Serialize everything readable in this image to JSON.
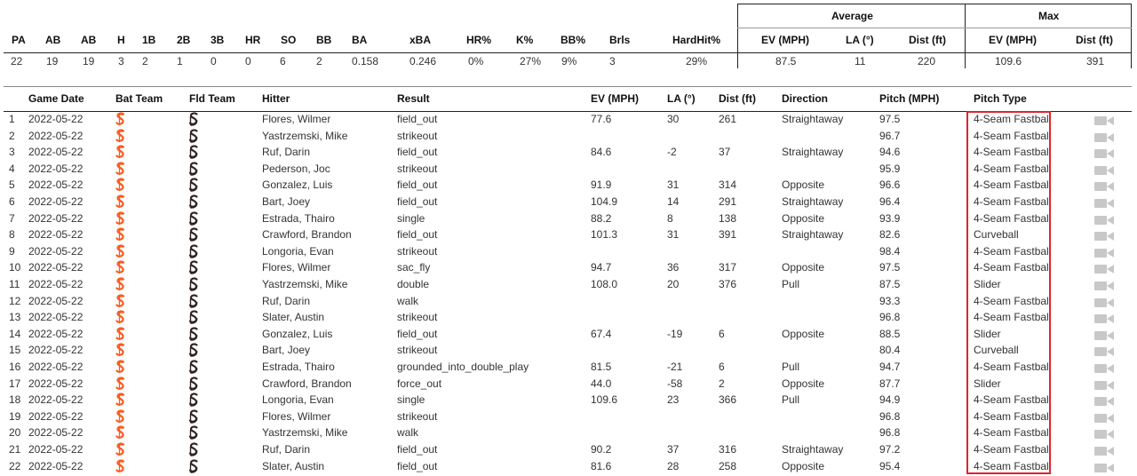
{
  "summary": {
    "group_headers": {
      "average": "Average",
      "max": "Max"
    },
    "headers": [
      "PA",
      "AB",
      "AB",
      "H",
      "1B",
      "2B",
      "3B",
      "HR",
      "SO",
      "BB",
      "BA",
      "xBA",
      "HR%",
      "K%",
      "BB%",
      "Brls",
      "HardHit%",
      "EV (MPH)",
      "LA (°)",
      "Dist (ft)",
      "EV (MPH)",
      "Dist (ft)"
    ],
    "values": [
      "22",
      "19",
      "19",
      "3",
      "2",
      "1",
      "0",
      "0",
      "6",
      "2",
      "0.158",
      "0.246",
      "0%",
      "27%",
      "9%",
      "3",
      "29%",
      "87.5",
      "11",
      "220",
      "109.6",
      "391"
    ]
  },
  "table": {
    "columns": [
      "Game Date",
      "Bat Team",
      "Fld Team",
      "Hitter",
      "Result",
      "EV (MPH)",
      "LA (°)",
      "Dist (ft)",
      "Direction",
      "Pitch (MPH)",
      "Pitch Type"
    ],
    "bat_team_icon": "giants-logo-icon",
    "fld_team_icon": "padres-logo-icon",
    "video_icon": "video-camera-icon",
    "colors": {
      "giants": "#fd5a1e",
      "padres": "#2f241d",
      "highlight": "#e0242e",
      "camera": "#c8c8c8"
    },
    "rows": [
      {
        "n": "1",
        "date": "2022-05-22",
        "hitter": "Flores, Wilmer",
        "result": "field_out",
        "ev": "77.6",
        "la": "30",
        "dist": "261",
        "dir": "Straightaway",
        "pitch_mph": "97.5",
        "pitch_type": "4-Seam Fastball"
      },
      {
        "n": "2",
        "date": "2022-05-22",
        "hitter": "Yastrzemski, Mike",
        "result": "strikeout",
        "ev": "",
        "la": "",
        "dist": "",
        "dir": "",
        "pitch_mph": "96.7",
        "pitch_type": "4-Seam Fastball"
      },
      {
        "n": "3",
        "date": "2022-05-22",
        "hitter": "Ruf, Darin",
        "result": "field_out",
        "ev": "84.6",
        "la": "-2",
        "dist": "37",
        "dir": "Straightaway",
        "pitch_mph": "94.6",
        "pitch_type": "4-Seam Fastball"
      },
      {
        "n": "4",
        "date": "2022-05-22",
        "hitter": "Pederson, Joc",
        "result": "strikeout",
        "ev": "",
        "la": "",
        "dist": "",
        "dir": "",
        "pitch_mph": "95.9",
        "pitch_type": "4-Seam Fastball"
      },
      {
        "n": "5",
        "date": "2022-05-22",
        "hitter": "Gonzalez, Luis",
        "result": "field_out",
        "ev": "91.9",
        "la": "31",
        "dist": "314",
        "dir": "Opposite",
        "pitch_mph": "96.6",
        "pitch_type": "4-Seam Fastball"
      },
      {
        "n": "6",
        "date": "2022-05-22",
        "hitter": "Bart, Joey",
        "result": "field_out",
        "ev": "104.9",
        "la": "14",
        "dist": "291",
        "dir": "Straightaway",
        "pitch_mph": "96.4",
        "pitch_type": "4-Seam Fastball"
      },
      {
        "n": "7",
        "date": "2022-05-22",
        "hitter": "Estrada, Thairo",
        "result": "single",
        "ev": "88.2",
        "la": "8",
        "dist": "138",
        "dir": "Opposite",
        "pitch_mph": "93.9",
        "pitch_type": "4-Seam Fastball"
      },
      {
        "n": "8",
        "date": "2022-05-22",
        "hitter": "Crawford, Brandon",
        "result": "field_out",
        "ev": "101.3",
        "la": "31",
        "dist": "391",
        "dir": "Straightaway",
        "pitch_mph": "82.6",
        "pitch_type": "Curveball"
      },
      {
        "n": "9",
        "date": "2022-05-22",
        "hitter": "Longoria, Evan",
        "result": "strikeout",
        "ev": "",
        "la": "",
        "dist": "",
        "dir": "",
        "pitch_mph": "98.4",
        "pitch_type": "4-Seam Fastball"
      },
      {
        "n": "10",
        "date": "2022-05-22",
        "hitter": "Flores, Wilmer",
        "result": "sac_fly",
        "ev": "94.7",
        "la": "36",
        "dist": "317",
        "dir": "Opposite",
        "pitch_mph": "97.5",
        "pitch_type": "4-Seam Fastball"
      },
      {
        "n": "11",
        "date": "2022-05-22",
        "hitter": "Yastrzemski, Mike",
        "result": "double",
        "ev": "108.0",
        "la": "20",
        "dist": "376",
        "dir": "Pull",
        "pitch_mph": "87.5",
        "pitch_type": "Slider"
      },
      {
        "n": "12",
        "date": "2022-05-22",
        "hitter": "Ruf, Darin",
        "result": "walk",
        "ev": "",
        "la": "",
        "dist": "",
        "dir": "",
        "pitch_mph": "93.3",
        "pitch_type": "4-Seam Fastball"
      },
      {
        "n": "13",
        "date": "2022-05-22",
        "hitter": "Slater, Austin",
        "result": "strikeout",
        "ev": "",
        "la": "",
        "dist": "",
        "dir": "",
        "pitch_mph": "96.8",
        "pitch_type": "4-Seam Fastball"
      },
      {
        "n": "14",
        "date": "2022-05-22",
        "hitter": "Gonzalez, Luis",
        "result": "field_out",
        "ev": "67.4",
        "la": "-19",
        "dist": "6",
        "dir": "Opposite",
        "pitch_mph": "88.5",
        "pitch_type": "Slider"
      },
      {
        "n": "15",
        "date": "2022-05-22",
        "hitter": "Bart, Joey",
        "result": "strikeout",
        "ev": "",
        "la": "",
        "dist": "",
        "dir": "",
        "pitch_mph": "80.4",
        "pitch_type": "Curveball"
      },
      {
        "n": "16",
        "date": "2022-05-22",
        "hitter": "Estrada, Thairo",
        "result": "grounded_into_double_play",
        "ev": "81.5",
        "la": "-21",
        "dist": "6",
        "dir": "Pull",
        "pitch_mph": "94.7",
        "pitch_type": "4-Seam Fastball"
      },
      {
        "n": "17",
        "date": "2022-05-22",
        "hitter": "Crawford, Brandon",
        "result": "force_out",
        "ev": "44.0",
        "la": "-58",
        "dist": "2",
        "dir": "Opposite",
        "pitch_mph": "87.7",
        "pitch_type": "Slider"
      },
      {
        "n": "18",
        "date": "2022-05-22",
        "hitter": "Longoria, Evan",
        "result": "single",
        "ev": "109.6",
        "la": "23",
        "dist": "366",
        "dir": "Pull",
        "pitch_mph": "94.9",
        "pitch_type": "4-Seam Fastball"
      },
      {
        "n": "19",
        "date": "2022-05-22",
        "hitter": "Flores, Wilmer",
        "result": "strikeout",
        "ev": "",
        "la": "",
        "dist": "",
        "dir": "",
        "pitch_mph": "96.8",
        "pitch_type": "4-Seam Fastball"
      },
      {
        "n": "20",
        "date": "2022-05-22",
        "hitter": "Yastrzemski, Mike",
        "result": "walk",
        "ev": "",
        "la": "",
        "dist": "",
        "dir": "",
        "pitch_mph": "96.8",
        "pitch_type": "4-Seam Fastball"
      },
      {
        "n": "21",
        "date": "2022-05-22",
        "hitter": "Ruf, Darin",
        "result": "field_out",
        "ev": "90.2",
        "la": "37",
        "dist": "316",
        "dir": "Straightaway",
        "pitch_mph": "97.2",
        "pitch_type": "4-Seam Fastball"
      },
      {
        "n": "22",
        "date": "2022-05-22",
        "hitter": "Slater, Austin",
        "result": "field_out",
        "ev": "81.6",
        "la": "28",
        "dist": "258",
        "dir": "Opposite",
        "pitch_mph": "95.4",
        "pitch_type": "4-Seam Fastball"
      }
    ]
  }
}
